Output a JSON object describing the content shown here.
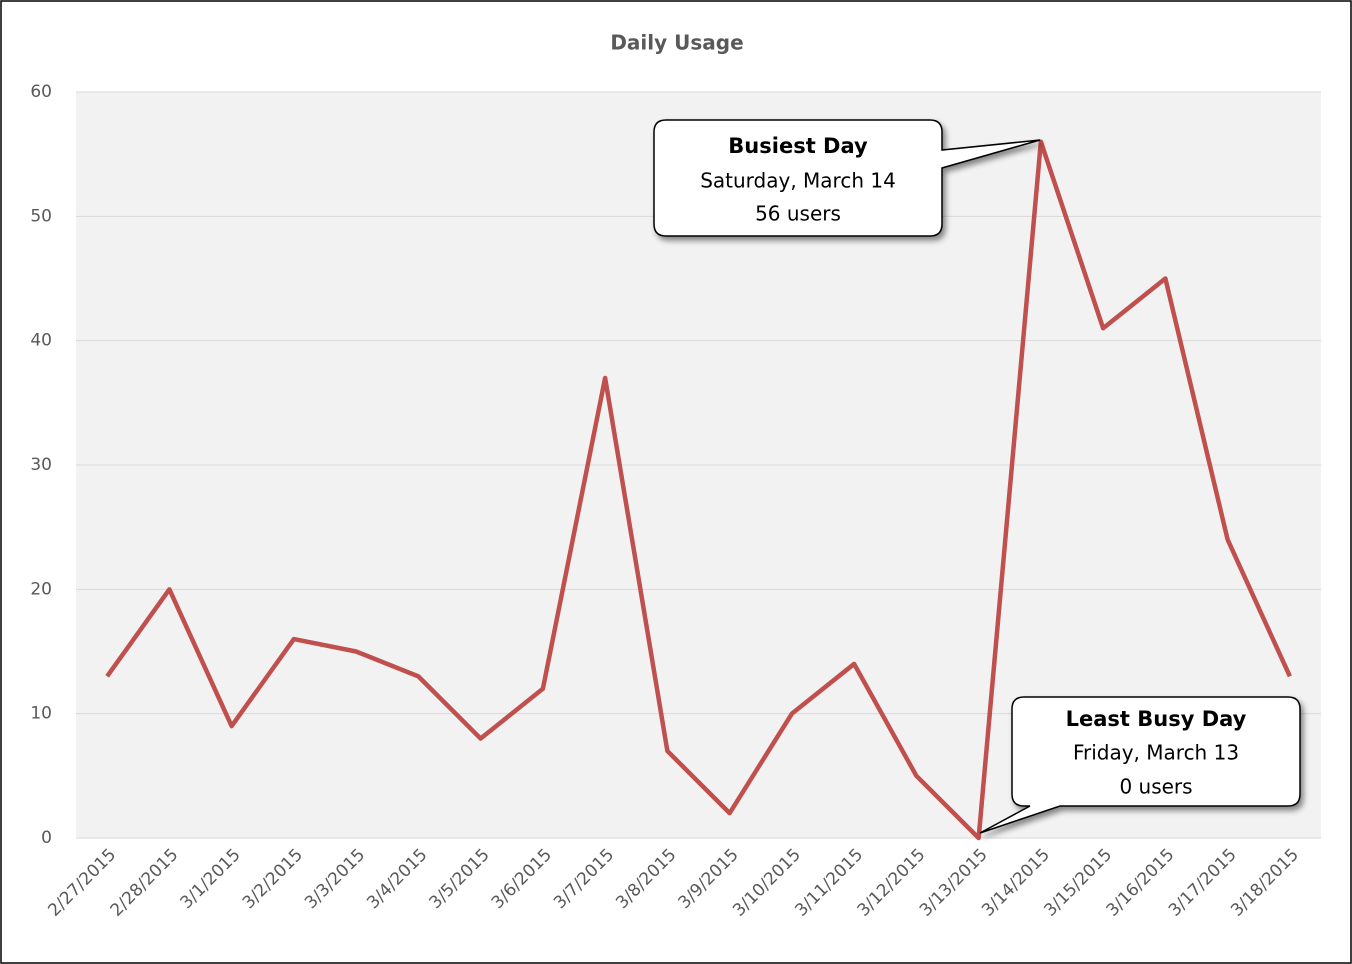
{
  "chart_data": {
    "type": "line",
    "title": "Daily Usage",
    "categories": [
      "2/27/2015",
      "2/28/2015",
      "3/1/2015",
      "3/2/2015",
      "3/3/2015",
      "3/4/2015",
      "3/5/2015",
      "3/6/2015",
      "3/7/2015",
      "3/8/2015",
      "3/9/2015",
      "3/10/2015",
      "3/11/2015",
      "3/12/2015",
      "3/13/2015",
      "3/14/2015",
      "3/15/2015",
      "3/16/2015",
      "3/17/2015",
      "3/18/2015"
    ],
    "series": [
      {
        "color": "#c0504d",
        "values": [
          13,
          20,
          9,
          16,
          15,
          13,
          8,
          12,
          37,
          7,
          2,
          10,
          14,
          5,
          0,
          56,
          41,
          45,
          24,
          13
        ]
      }
    ],
    "ylim": [
      0,
      60
    ],
    "yticks": [
      0,
      10,
      20,
      30,
      40,
      50,
      60
    ],
    "grid": true,
    "annotations": [
      {
        "title": "Busiest Day",
        "lines": [
          "Saturday, March 14",
          "56 users"
        ]
      },
      {
        "title": "Least Busy Day",
        "lines": [
          "Friday, March 13",
          "0 users"
        ]
      }
    ]
  }
}
